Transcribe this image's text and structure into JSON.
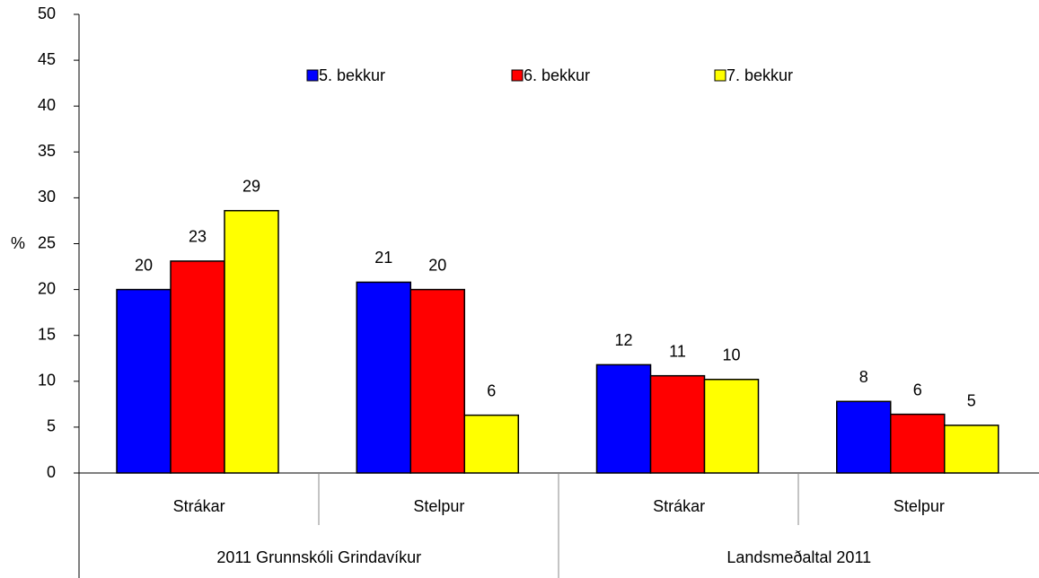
{
  "chart_data": {
    "type": "bar",
    "y_label": "%",
    "categories": [
      "Strákar",
      "Stelpur",
      "Strákar",
      "Stelpur"
    ],
    "category_groups": [
      "2011 Grunnskóli Grindavíkur",
      "Landsmeðaltal 2011"
    ],
    "series": [
      {
        "name": "5. bekkur",
        "color": "#0000ff",
        "values": [
          20,
          20.8,
          11.8,
          7.8
        ],
        "value_labels": [
          "20",
          "21",
          "12",
          "8"
        ]
      },
      {
        "name": "6. bekkur",
        "color": "#ff0000",
        "values": [
          23.1,
          20,
          10.6,
          6.4
        ],
        "value_labels": [
          "23",
          "20",
          "11",
          "6"
        ]
      },
      {
        "name": "7. bekkur",
        "color": "#ffff00",
        "values": [
          28.6,
          6.3,
          10.2,
          5.2
        ],
        "value_labels": [
          "29",
          "6",
          "10",
          "5"
        ]
      }
    ],
    "ylim": [
      0,
      50
    ],
    "yticks": [
      0,
      5,
      10,
      15,
      20,
      25,
      30,
      35,
      40,
      45,
      50
    ],
    "legend": "top"
  }
}
